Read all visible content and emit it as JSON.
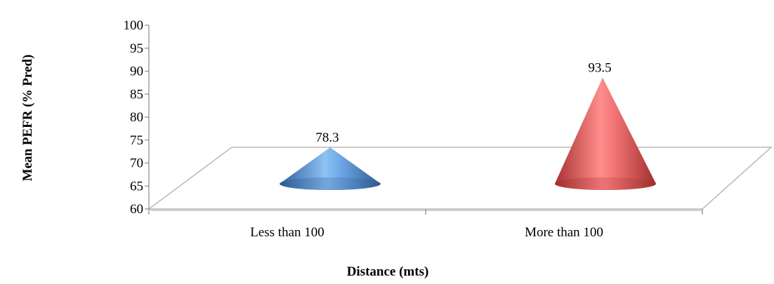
{
  "chart_data": {
    "type": "bar",
    "style": "3d-cone",
    "categories": [
      "Less than 100",
      "More than 100"
    ],
    "values": [
      78.3,
      93.5
    ],
    "data_labels": [
      "78.3",
      "93.5"
    ],
    "title": "",
    "xlabel": "Distance (mts)",
    "ylabel": "Mean PEFR (% Pred)",
    "ylim": [
      60,
      100
    ],
    "yticks": [
      "60",
      "65",
      "70",
      "75",
      "80",
      "85",
      "90",
      "95",
      "100"
    ],
    "grid": false,
    "legend": "none",
    "colors": [
      "#4a86c8",
      "#d04f4f"
    ]
  }
}
